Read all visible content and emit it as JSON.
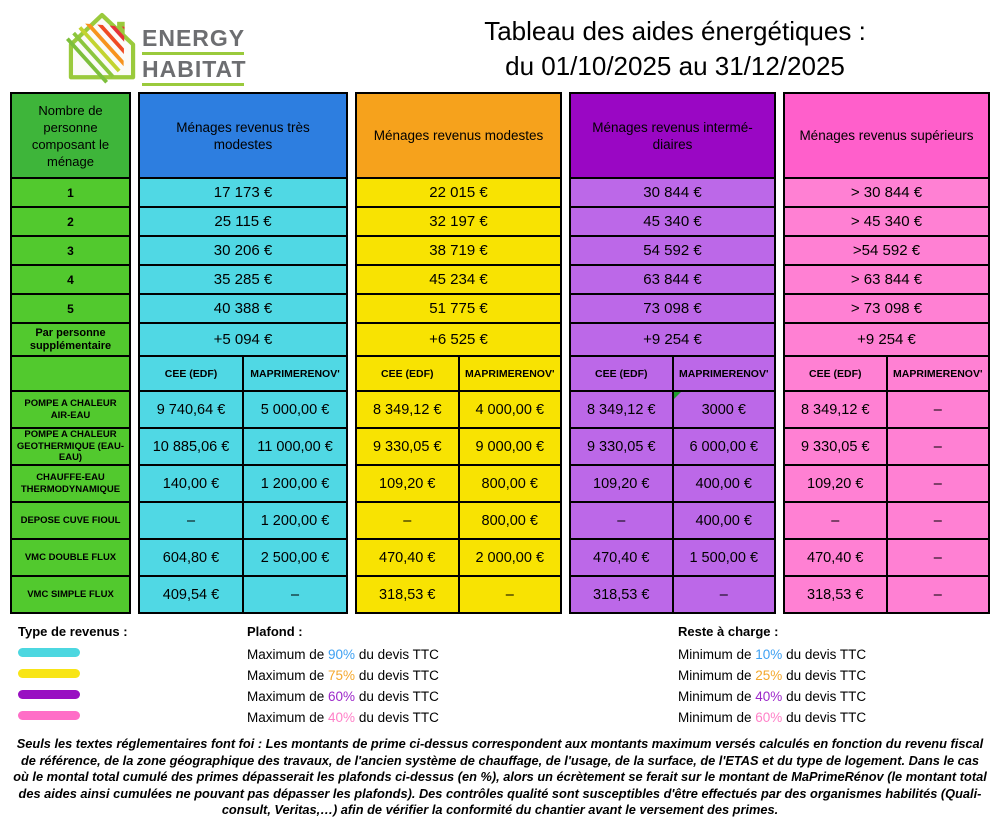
{
  "logo": {
    "line1": "ENERGY",
    "line2": "HABITAT"
  },
  "title": {
    "line1": "Tableau des aides énergétiques :",
    "line2": "du 01/10/2025 au 31/12/2025"
  },
  "table": {
    "left_header": "Nombre de personne composant le ménage",
    "household_sizes": [
      "1",
      "2",
      "3",
      "4",
      "5"
    ],
    "extra_person_label": "Par personne supplémentaire",
    "sub_headers": [
      "CEE (EDF)",
      "MAPRIMERENOV'"
    ],
    "equipment_labels": [
      "POMPE A CHALEUR AIR-EAU",
      "POMPE A CHALEUR GEOTHERMIQUE (EAU-EAU)",
      "CHAUFFE-EAU THERMODYNAMIQUE",
      "DEPOSE CUVE FIOUL",
      "VMC DOUBLE FLUX",
      "VMC SIMPLE FLUX"
    ],
    "left_colors": {
      "header": "#3eb53a",
      "rows": "#52c92e"
    },
    "groups": [
      {
        "label": "Ménages revenus très modestes",
        "header_color": "#2d7ee0",
        "cell_color": "#50d8e4",
        "income": [
          "17 173 €",
          "25 115 €",
          "30 206 €",
          "35 285 €",
          "40 388 €",
          "+5 094 €"
        ],
        "aids": [
          [
            "9 740,64 €",
            "5 000,00 €"
          ],
          [
            "10 885,06 €",
            "11 000,00 €"
          ],
          [
            "140,00 €",
            "1 200,00 €"
          ],
          [
            "–",
            "1 200,00 €"
          ],
          [
            "604,80 €",
            "2 500,00 €"
          ],
          [
            "409,54 €",
            "–"
          ]
        ]
      },
      {
        "label": "Ménages revenus modestes",
        "header_color": "#f6a21c",
        "cell_color": "#f8e302",
        "income": [
          "22 015 €",
          "32 197 €",
          "38 719 €",
          "45 234 €",
          "51 775 €",
          "+6 525 €"
        ],
        "aids": [
          [
            "8 349,12 €",
            "4 000,00 €"
          ],
          [
            "9 330,05 €",
            "9 000,00 €"
          ],
          [
            "109,20 €",
            "800,00 €"
          ],
          [
            "–",
            "800,00 €"
          ],
          [
            "470,40 €",
            "2 000,00 €"
          ],
          [
            "318,53 €",
            "–"
          ]
        ]
      },
      {
        "label": "Ménages revenus intermé-diaires",
        "header_color": "#9a07c4",
        "cell_color": "#bc68e8",
        "income": [
          "30 844 €",
          "45 340 €",
          "54 592 €",
          "63 844 €",
          "73 098 €",
          "+9 254 €"
        ],
        "aids": [
          [
            "8 349,12 €",
            "3000 €"
          ],
          [
            "9 330,05 €",
            "6 000,00 €"
          ],
          [
            "109,20 €",
            "400,00 €"
          ],
          [
            "–",
            "400,00 €"
          ],
          [
            "470,40 €",
            "1 500,00 €"
          ],
          [
            "318,53 €",
            "–"
          ]
        ],
        "note_cell": {
          "row": 0,
          "col": 1
        }
      },
      {
        "label": "Ménages revenus supérieurs",
        "header_color": "#ff5fcb",
        "cell_color": "#ff80d3",
        "income": [
          "> 30 844 €",
          "> 45 340 €",
          ">54 592 €",
          "> 63 844 €",
          "> 73 098 €",
          "+9 254 €"
        ],
        "aids": [
          [
            "8 349,12 €",
            "–"
          ],
          [
            "9 330,05 €",
            "–"
          ],
          [
            "109,20 €",
            "–"
          ],
          [
            "–",
            "–"
          ],
          [
            "470,40 €",
            "–"
          ],
          [
            "318,53 €",
            "–"
          ]
        ]
      }
    ]
  },
  "legend": {
    "revenue_title": "Type de revenus :",
    "swatch_colors": [
      "#4cd7e0",
      "#f8e516",
      "#990fc2",
      "#ff6ec7"
    ],
    "plafond_title": "Plafond  :",
    "plafond_lines": [
      {
        "prefix": "Maximum de ",
        "pct": "90%",
        "suffix": " du devis TTC",
        "color": "#3da0f2"
      },
      {
        "prefix": "Maximum de ",
        "pct": "75%",
        "suffix": " du devis TTC",
        "color": "#f4a82c"
      },
      {
        "prefix": "Maximum de ",
        "pct": "60%",
        "suffix": " du devis TTC",
        "color": "#9c27c9"
      },
      {
        "prefix": "Maximum de ",
        "pct": "40%",
        "suffix": " du devis TTC",
        "color": "#ff80c8"
      }
    ],
    "reste_title": "Reste à charge :",
    "reste_lines": [
      {
        "prefix": "Minimum de ",
        "pct": "10%",
        "suffix": " du devis TTC",
        "color": "#3da0f2"
      },
      {
        "prefix": "Minimum de ",
        "pct": "25%",
        "suffix": " du devis TTC",
        "color": "#f4a82c"
      },
      {
        "prefix": "Minimum de ",
        "pct": "40%",
        "suffix": " du devis TTC",
        "color": "#9c27c9"
      },
      {
        "prefix": "Minimum de ",
        "pct": "60%",
        "suffix": " du devis TTC",
        "color": "#ff80c8"
      }
    ]
  },
  "disclaimer": "Seuls les textes réglementaires font foi : Les montants de prime ci-dessus correspondent aux montants maximum versés calculés en fonction du revenu fiscal de référence, de la zone géographique des travaux, de l'ancien système de chauffage, de l'usage, de la surface, de l'ETAS et du type de logement. Dans le cas où le montal total cumulé des primes dépasserait les plafonds ci-dessus (en %), alors un écrètement se ferait sur le montant de  MaPrimeRénov (le montant total des aides ainsi cumulées ne pouvant pas dépasser les plafonds). Des contrôles qualité sont susceptibles d'être effectués par des organismes habilités (Quali-consult, Veritas,…) afin de vérifier la conformité du chantier avant le versement des primes."
}
